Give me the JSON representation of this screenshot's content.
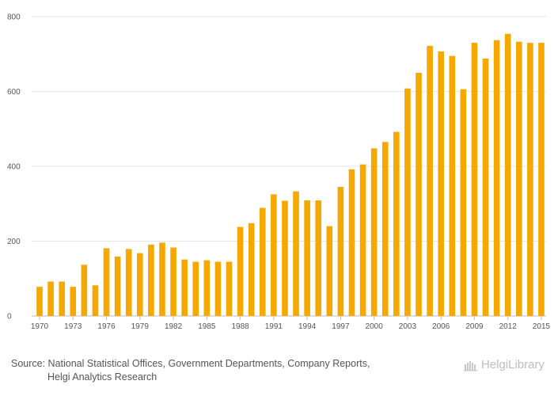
{
  "chart_data": {
    "type": "bar",
    "title": "",
    "xlabel": "",
    "ylabel": "",
    "ylim": [
      0,
      800
    ],
    "yticks": [
      0,
      200,
      400,
      600,
      800
    ],
    "bar_color": "#F5A800",
    "grid_color": "#e6e6e6",
    "categories": [
      "1970",
      "1971",
      "1972",
      "1973",
      "1974",
      "1975",
      "1976",
      "1977",
      "1978",
      "1979",
      "1980",
      "1981",
      "1982",
      "1983",
      "1984",
      "1985",
      "1986",
      "1987",
      "1988",
      "1989",
      "1990",
      "1991",
      "1992",
      "1993",
      "1994",
      "1995",
      "1996",
      "1997",
      "1998",
      "1999",
      "2000",
      "2001",
      "2002",
      "2003",
      "2004",
      "2005",
      "2006",
      "2007",
      "2008",
      "2009",
      "2010",
      "2011",
      "2012",
      "2013",
      "2014",
      "2015"
    ],
    "x_tick_labels": [
      "1970",
      "1973",
      "1976",
      "1979",
      "1982",
      "1985",
      "1988",
      "1991",
      "1994",
      "1997",
      "2000",
      "2003",
      "2006",
      "2009",
      "2012",
      "2015"
    ],
    "values": [
      78,
      92,
      92,
      78,
      137,
      82,
      181,
      159,
      179,
      168,
      191,
      196,
      183,
      151,
      145,
      149,
      145,
      145,
      238,
      248,
      289,
      325,
      308,
      333,
      309,
      309,
      240,
      345,
      392,
      405,
      448,
      465,
      492,
      608,
      650,
      722,
      707,
      695,
      606,
      730,
      688,
      737,
      754,
      733,
      730,
      730
    ]
  },
  "footer": {
    "source_line1": "Source: National Statistical Offices, Government Departments, Company Reports,",
    "source_line2": "Helgi Analytics Research",
    "brand_text": "HelgiLibrary"
  }
}
